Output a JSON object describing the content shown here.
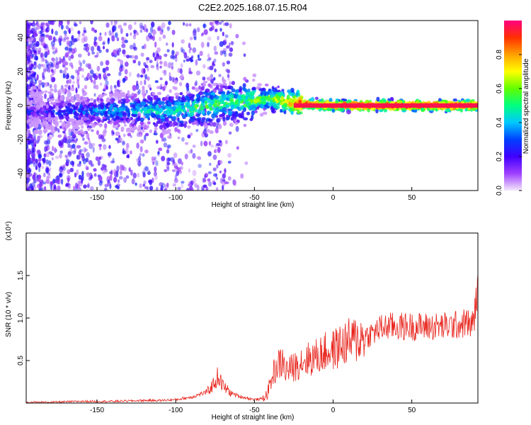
{
  "title": "C2E2.2025.168.07.15.R04",
  "chart_data": [
    {
      "type": "heatmap",
      "xlabel": "Height of straight line (km)",
      "ylabel": "Frequency (Hz)",
      "xlim": [
        -195,
        92
      ],
      "ylim": [
        -50,
        50
      ],
      "x_ticks": [
        -150,
        -100,
        -50,
        0,
        50
      ],
      "x_tick_labels": [
        "-150",
        "-100",
        "-50",
        "0",
        "50"
      ],
      "y_ticks": [
        -40,
        -20,
        0,
        20,
        40
      ],
      "y_tick_labels": [
        "-40",
        "-20",
        "0",
        "20",
        "40"
      ],
      "colorbar": {
        "label": "Normalized spectral amplitude",
        "range": [
          0,
          1
        ],
        "ticks": [
          0.0,
          0.2,
          0.4,
          0.6,
          0.8
        ],
        "tick_labels": [
          "0.0",
          "0.2",
          "0.4",
          "0.6",
          "0.8"
        ],
        "colors": [
          "#f4e9fb",
          "#a040ff",
          "#4000ff",
          "#0040ff",
          "#00c8ff",
          "#00ff80",
          "#60ff00",
          "#ffff00",
          "#ffa000",
          "#ff3000",
          "#ff0080"
        ]
      },
      "ridge": {
        "x": [
          -195,
          -150,
          -100,
          -80,
          -60,
          -50,
          -40,
          -30,
          -20,
          0,
          20,
          50,
          92
        ],
        "frequency": [
          -4,
          -3,
          -3,
          0,
          2,
          3,
          4,
          2,
          1,
          0,
          0,
          0,
          0
        ],
        "amplitude": [
          0.2,
          0.35,
          0.5,
          0.55,
          0.55,
          0.6,
          0.6,
          0.75,
          0.9,
          0.95,
          0.98,
          0.98,
          0.98
        ]
      },
      "grid": false
    },
    {
      "type": "line",
      "xlabel": "Height of straight line (km)",
      "ylabel": "SNR (10 * v/v)",
      "y_multiplier": "(x10⁴)",
      "xlim": [
        -195,
        92
      ],
      "ylim": [
        0,
        2.0
      ],
      "x_ticks": [
        -150,
        -100,
        -50,
        0,
        50
      ],
      "x_tick_labels": [
        "-150",
        "-100",
        "-50",
        "0",
        "50"
      ],
      "y_ticks": [
        0.5,
        1.0,
        1.5
      ],
      "y_tick_labels": [
        "0.5",
        "1.0",
        "1.5"
      ],
      "series": [
        {
          "color": "#e8241c",
          "x": [
            -195,
            -180,
            -160,
            -140,
            -120,
            -110,
            -100,
            -90,
            -85,
            -80,
            -76,
            -73,
            -70,
            -65,
            -60,
            -55,
            -50,
            -45,
            -42,
            -40,
            -38,
            -35,
            -32,
            -30,
            -25,
            -20,
            -15,
            -10,
            -5,
            0,
            5,
            10,
            15,
            20,
            25,
            30,
            35,
            40,
            50,
            60,
            70,
            80,
            85,
            88,
            90,
            92
          ],
          "values": [
            0.01,
            0.01,
            0.02,
            0.02,
            0.03,
            0.03,
            0.04,
            0.07,
            0.1,
            0.13,
            0.22,
            0.32,
            0.2,
            0.12,
            0.08,
            0.06,
            0.04,
            0.05,
            0.1,
            0.22,
            0.35,
            0.45,
            0.48,
            0.38,
            0.42,
            0.5,
            0.52,
            0.55,
            0.6,
            0.62,
            0.68,
            0.72,
            0.75,
            0.78,
            0.82,
            0.88,
            0.9,
            0.9,
            0.9,
            0.9,
            0.9,
            0.92,
            0.95,
            0.9,
            1.05,
            1.38
          ]
        }
      ],
      "grid": false
    }
  ]
}
